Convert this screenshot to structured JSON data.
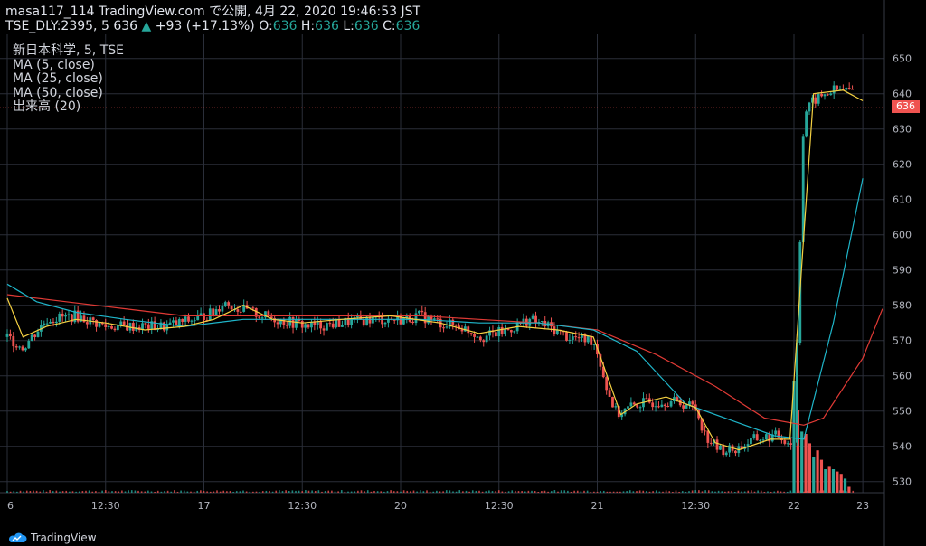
{
  "header": {
    "publisher_line": "masa117_114 TradingView.com で公開, 4月 22, 2020 19:46:53 JST",
    "symbol": "TSE_DLY:2395, 5",
    "last": "636",
    "change": "+93 (+17.13%)",
    "o_label": "O:",
    "o_value": "636",
    "h_label": "H:",
    "h_value": "636",
    "l_label": "L:",
    "l_value": "636",
    "c_label": "C:",
    "c_value": "636"
  },
  "legend": {
    "title": "新日本科学, 5, TSE",
    "ma5": "MA (5, close)",
    "ma25": "MA (25, close)",
    "ma50": "MA (50, close)",
    "volume": "出来高 (20)"
  },
  "current_price_label": "636",
  "footer": {
    "brand": "TradingView"
  },
  "colors": {
    "background": "#000000",
    "grid": "#2a2e39",
    "up": "#26a69a",
    "down": "#ef5350",
    "ma5": "#f5d142",
    "ma25": "#1fb5c9",
    "ma50": "#e03a35",
    "price_line": "#ef5350"
  },
  "chart_data": {
    "type": "candlestick",
    "y_ticks": [
      530,
      540,
      550,
      560,
      570,
      580,
      590,
      600,
      610,
      620,
      630,
      640,
      650
    ],
    "ylim": [
      527,
      655
    ],
    "x_ticks": [
      {
        "label": "6",
        "pos": 0
      },
      {
        "label": "12:30",
        "pos": 0.5
      },
      {
        "label": "17",
        "pos": 1
      },
      {
        "label": "12:30",
        "pos": 1.5
      },
      {
        "label": "20",
        "pos": 2
      },
      {
        "label": "12:30",
        "pos": 2.5
      },
      {
        "label": "21",
        "pos": 3
      },
      {
        "label": "12:30",
        "pos": 3.5
      },
      {
        "label": "22",
        "pos": 4
      },
      {
        "label": "23",
        "pos": 4.35
      }
    ],
    "close_anchors": [
      [
        0,
        571
      ],
      [
        0.08,
        568
      ],
      [
        0.2,
        576
      ],
      [
        0.35,
        577
      ],
      [
        0.5,
        574
      ],
      [
        0.65,
        574
      ],
      [
        0.8,
        574
      ],
      [
        0.95,
        576
      ],
      [
        1.05,
        578
      ],
      [
        1.1,
        581
      ],
      [
        1.18,
        579
      ],
      [
        1.3,
        577
      ],
      [
        1.45,
        575
      ],
      [
        1.55,
        574
      ],
      [
        1.7,
        575
      ],
      [
        1.85,
        576
      ],
      [
        2.0,
        576
      ],
      [
        2.1,
        577
      ],
      [
        2.2,
        575
      ],
      [
        2.3,
        574
      ],
      [
        2.42,
        571
      ],
      [
        2.55,
        573
      ],
      [
        2.65,
        576
      ],
      [
        2.75,
        574
      ],
      [
        2.85,
        571
      ],
      [
        2.98,
        570
      ],
      [
        3.01,
        565
      ],
      [
        3.05,
        556
      ],
      [
        3.1,
        549
      ],
      [
        3.2,
        552
      ],
      [
        3.35,
        553
      ],
      [
        3.45,
        552
      ],
      [
        3.5,
        551
      ],
      [
        3.55,
        543
      ],
      [
        3.62,
        539
      ],
      [
        3.7,
        539
      ],
      [
        3.8,
        542
      ],
      [
        3.92,
        543
      ],
      [
        3.98,
        541
      ],
      [
        4.0,
        541
      ],
      [
        4.05,
        634
      ],
      [
        4.1,
        638
      ],
      [
        4.2,
        641
      ],
      [
        4.3,
        641
      ]
    ],
    "volume_spikes": [
      {
        "pos": 4.0,
        "value": 0.95,
        "color": "up"
      },
      {
        "pos": 4.02,
        "value": 0.7,
        "color": "down"
      },
      {
        "pos": 4.04,
        "value": 0.52,
        "color": "up"
      },
      {
        "pos": 4.06,
        "value": 0.5,
        "color": "down"
      },
      {
        "pos": 4.08,
        "value": 0.42,
        "color": "down"
      },
      {
        "pos": 4.1,
        "value": 0.3,
        "color": "up"
      },
      {
        "pos": 4.12,
        "value": 0.36,
        "color": "down"
      },
      {
        "pos": 4.14,
        "value": 0.28,
        "color": "down"
      },
      {
        "pos": 4.16,
        "value": 0.2,
        "color": "up"
      },
      {
        "pos": 4.18,
        "value": 0.22,
        "color": "down"
      },
      {
        "pos": 4.2,
        "value": 0.2,
        "color": "up"
      },
      {
        "pos": 4.22,
        "value": 0.18,
        "color": "down"
      },
      {
        "pos": 4.24,
        "value": 0.16,
        "color": "down"
      },
      {
        "pos": 4.26,
        "value": 0.12,
        "color": "up"
      },
      {
        "pos": 4.28,
        "value": 0.05,
        "color": "down"
      }
    ],
    "ma5": [
      [
        0,
        582
      ],
      [
        0.08,
        571
      ],
      [
        0.2,
        574
      ],
      [
        0.35,
        576
      ],
      [
        0.5,
        575
      ],
      [
        0.7,
        573
      ],
      [
        0.9,
        574
      ],
      [
        1.05,
        576
      ],
      [
        1.2,
        580
      ],
      [
        1.35,
        576
      ],
      [
        1.5,
        575
      ],
      [
        1.7,
        576
      ],
      [
        1.95,
        577
      ],
      [
        2.2,
        575
      ],
      [
        2.4,
        572
      ],
      [
        2.6,
        574
      ],
      [
        2.8,
        573
      ],
      [
        2.98,
        571
      ],
      [
        3.05,
        560
      ],
      [
        3.12,
        549
      ],
      [
        3.2,
        552
      ],
      [
        3.35,
        554
      ],
      [
        3.5,
        551
      ],
      [
        3.6,
        541
      ],
      [
        3.72,
        539
      ],
      [
        3.88,
        542
      ],
      [
        3.98,
        542
      ],
      [
        4.05,
        600
      ],
      [
        4.1,
        640
      ],
      [
        4.25,
        641
      ],
      [
        4.35,
        638
      ]
    ],
    "ma25": [
      [
        0,
        586
      ],
      [
        0.15,
        581
      ],
      [
        0.35,
        578
      ],
      [
        0.6,
        576
      ],
      [
        0.9,
        574
      ],
      [
        1.2,
        576
      ],
      [
        1.5,
        576
      ],
      [
        1.8,
        576
      ],
      [
        2.1,
        576
      ],
      [
        2.4,
        575
      ],
      [
        2.7,
        575
      ],
      [
        2.98,
        573
      ],
      [
        3.2,
        567
      ],
      [
        3.45,
        552
      ],
      [
        3.7,
        547
      ],
      [
        3.9,
        543
      ],
      [
        4.05,
        542
      ],
      [
        4.2,
        575
      ],
      [
        4.35,
        616
      ]
    ],
    "ma50": [
      [
        0,
        583
      ],
      [
        0.3,
        581
      ],
      [
        0.6,
        579
      ],
      [
        0.9,
        577
      ],
      [
        1.2,
        577
      ],
      [
        1.5,
        577
      ],
      [
        1.8,
        577
      ],
      [
        2.1,
        577
      ],
      [
        2.4,
        576
      ],
      [
        2.7,
        575
      ],
      [
        3.0,
        573
      ],
      [
        3.3,
        566
      ],
      [
        3.6,
        557
      ],
      [
        3.85,
        548
      ],
      [
        4.05,
        546
      ],
      [
        4.15,
        548
      ],
      [
        4.35,
        565
      ],
      [
        4.45,
        579
      ]
    ]
  }
}
